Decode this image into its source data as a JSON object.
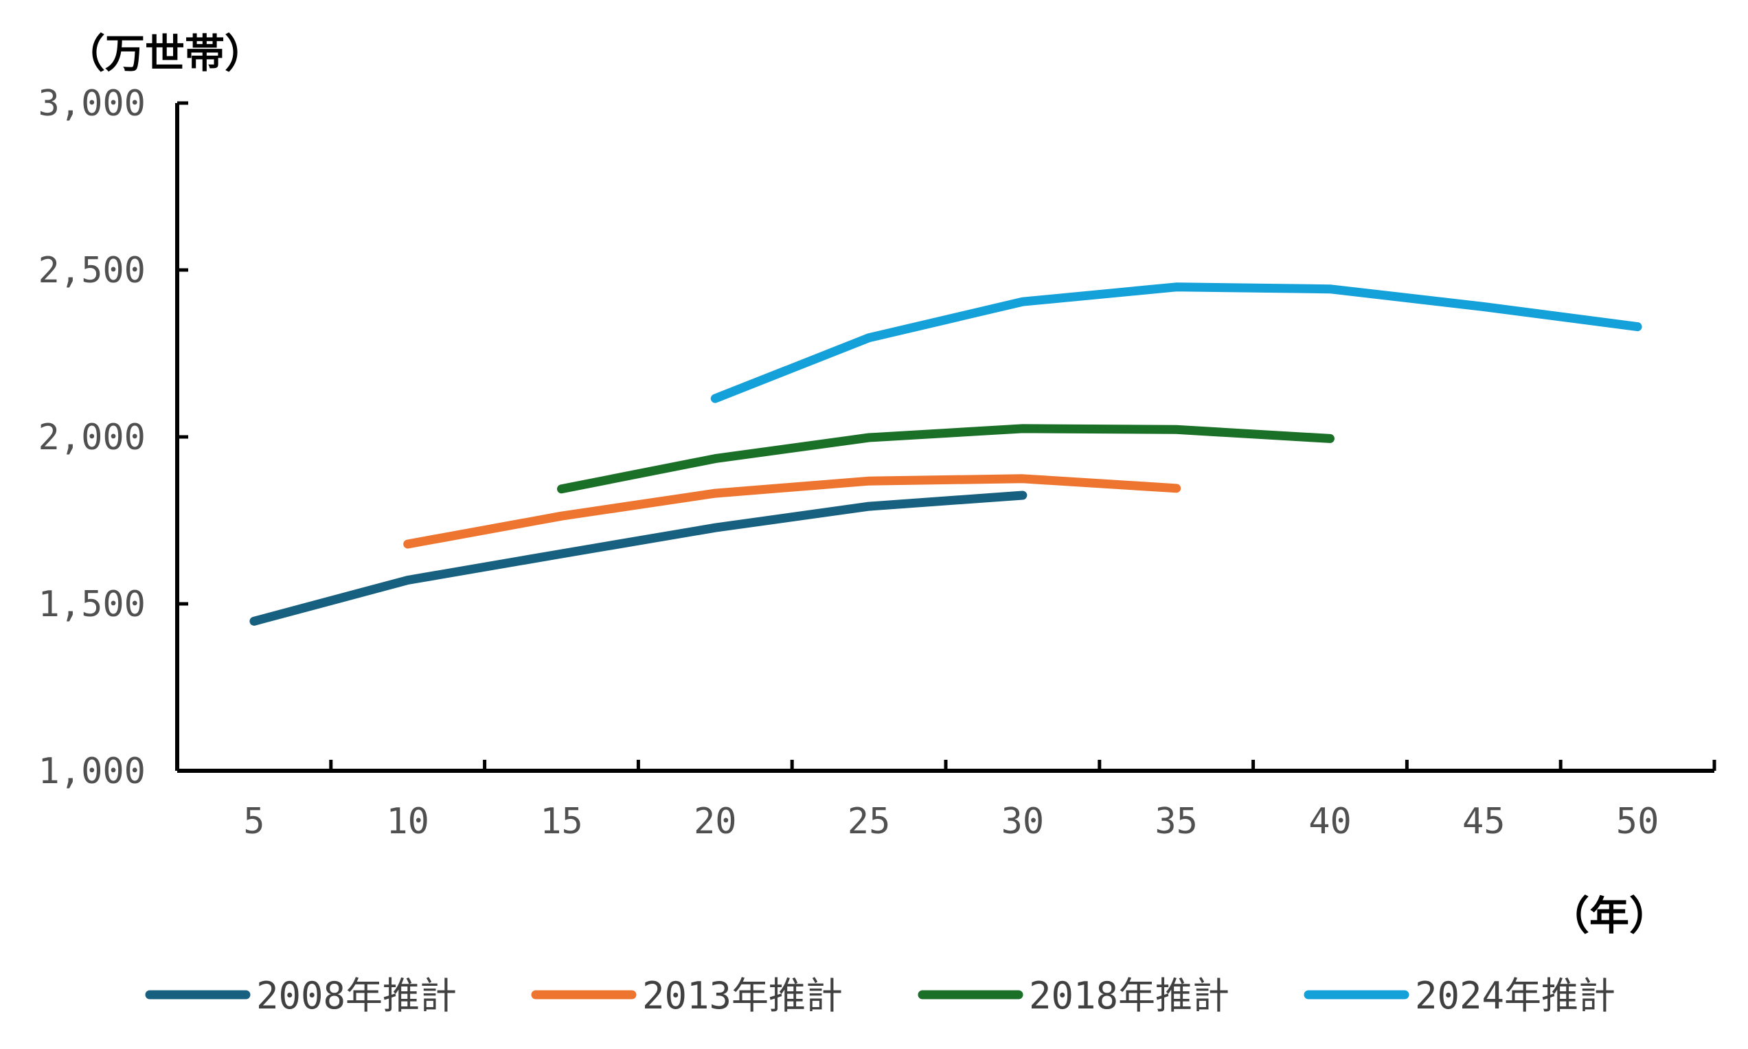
{
  "chart_data": {
    "type": "line",
    "ylabel": "（万世帯）",
    "xlabel": "（年）",
    "x": [
      5,
      10,
      15,
      20,
      25,
      30,
      35,
      40,
      45,
      50
    ],
    "x_tick_labels": [
      "5",
      "10",
      "15",
      "20",
      "25",
      "30",
      "35",
      "40",
      "45",
      "50"
    ],
    "y_tick_labels": [
      "1,000",
      "1,500",
      "2,000",
      "2,500",
      "3,000"
    ],
    "ylim": [
      1000,
      3000
    ],
    "y_ticks": [
      1000,
      1500,
      2000,
      2500,
      3000
    ],
    "grid": false,
    "legend_position": "bottom",
    "series": [
      {
        "name": "2008年推計",
        "color": "#17607f",
        "values": [
          1448,
          1571,
          1650,
          1728,
          1792,
          1825,
          null,
          null,
          null,
          null
        ]
      },
      {
        "name": "2013年推計",
        "color": "#ed7530",
        "values": [
          null,
          1679,
          1763,
          1831,
          1868,
          1875,
          1846,
          null,
          null,
          null
        ]
      },
      {
        "name": "2018年推計",
        "color": "#1b7028",
        "values": [
          null,
          null,
          1844,
          1935,
          1998,
          2025,
          2022,
          1995,
          null,
          null
        ]
      },
      {
        "name": "2024年推計",
        "color": "#14a0d8",
        "values": [
          null,
          null,
          null,
          2115,
          2297,
          2405,
          2449,
          2443,
          2390,
          2330
        ]
      }
    ]
  }
}
